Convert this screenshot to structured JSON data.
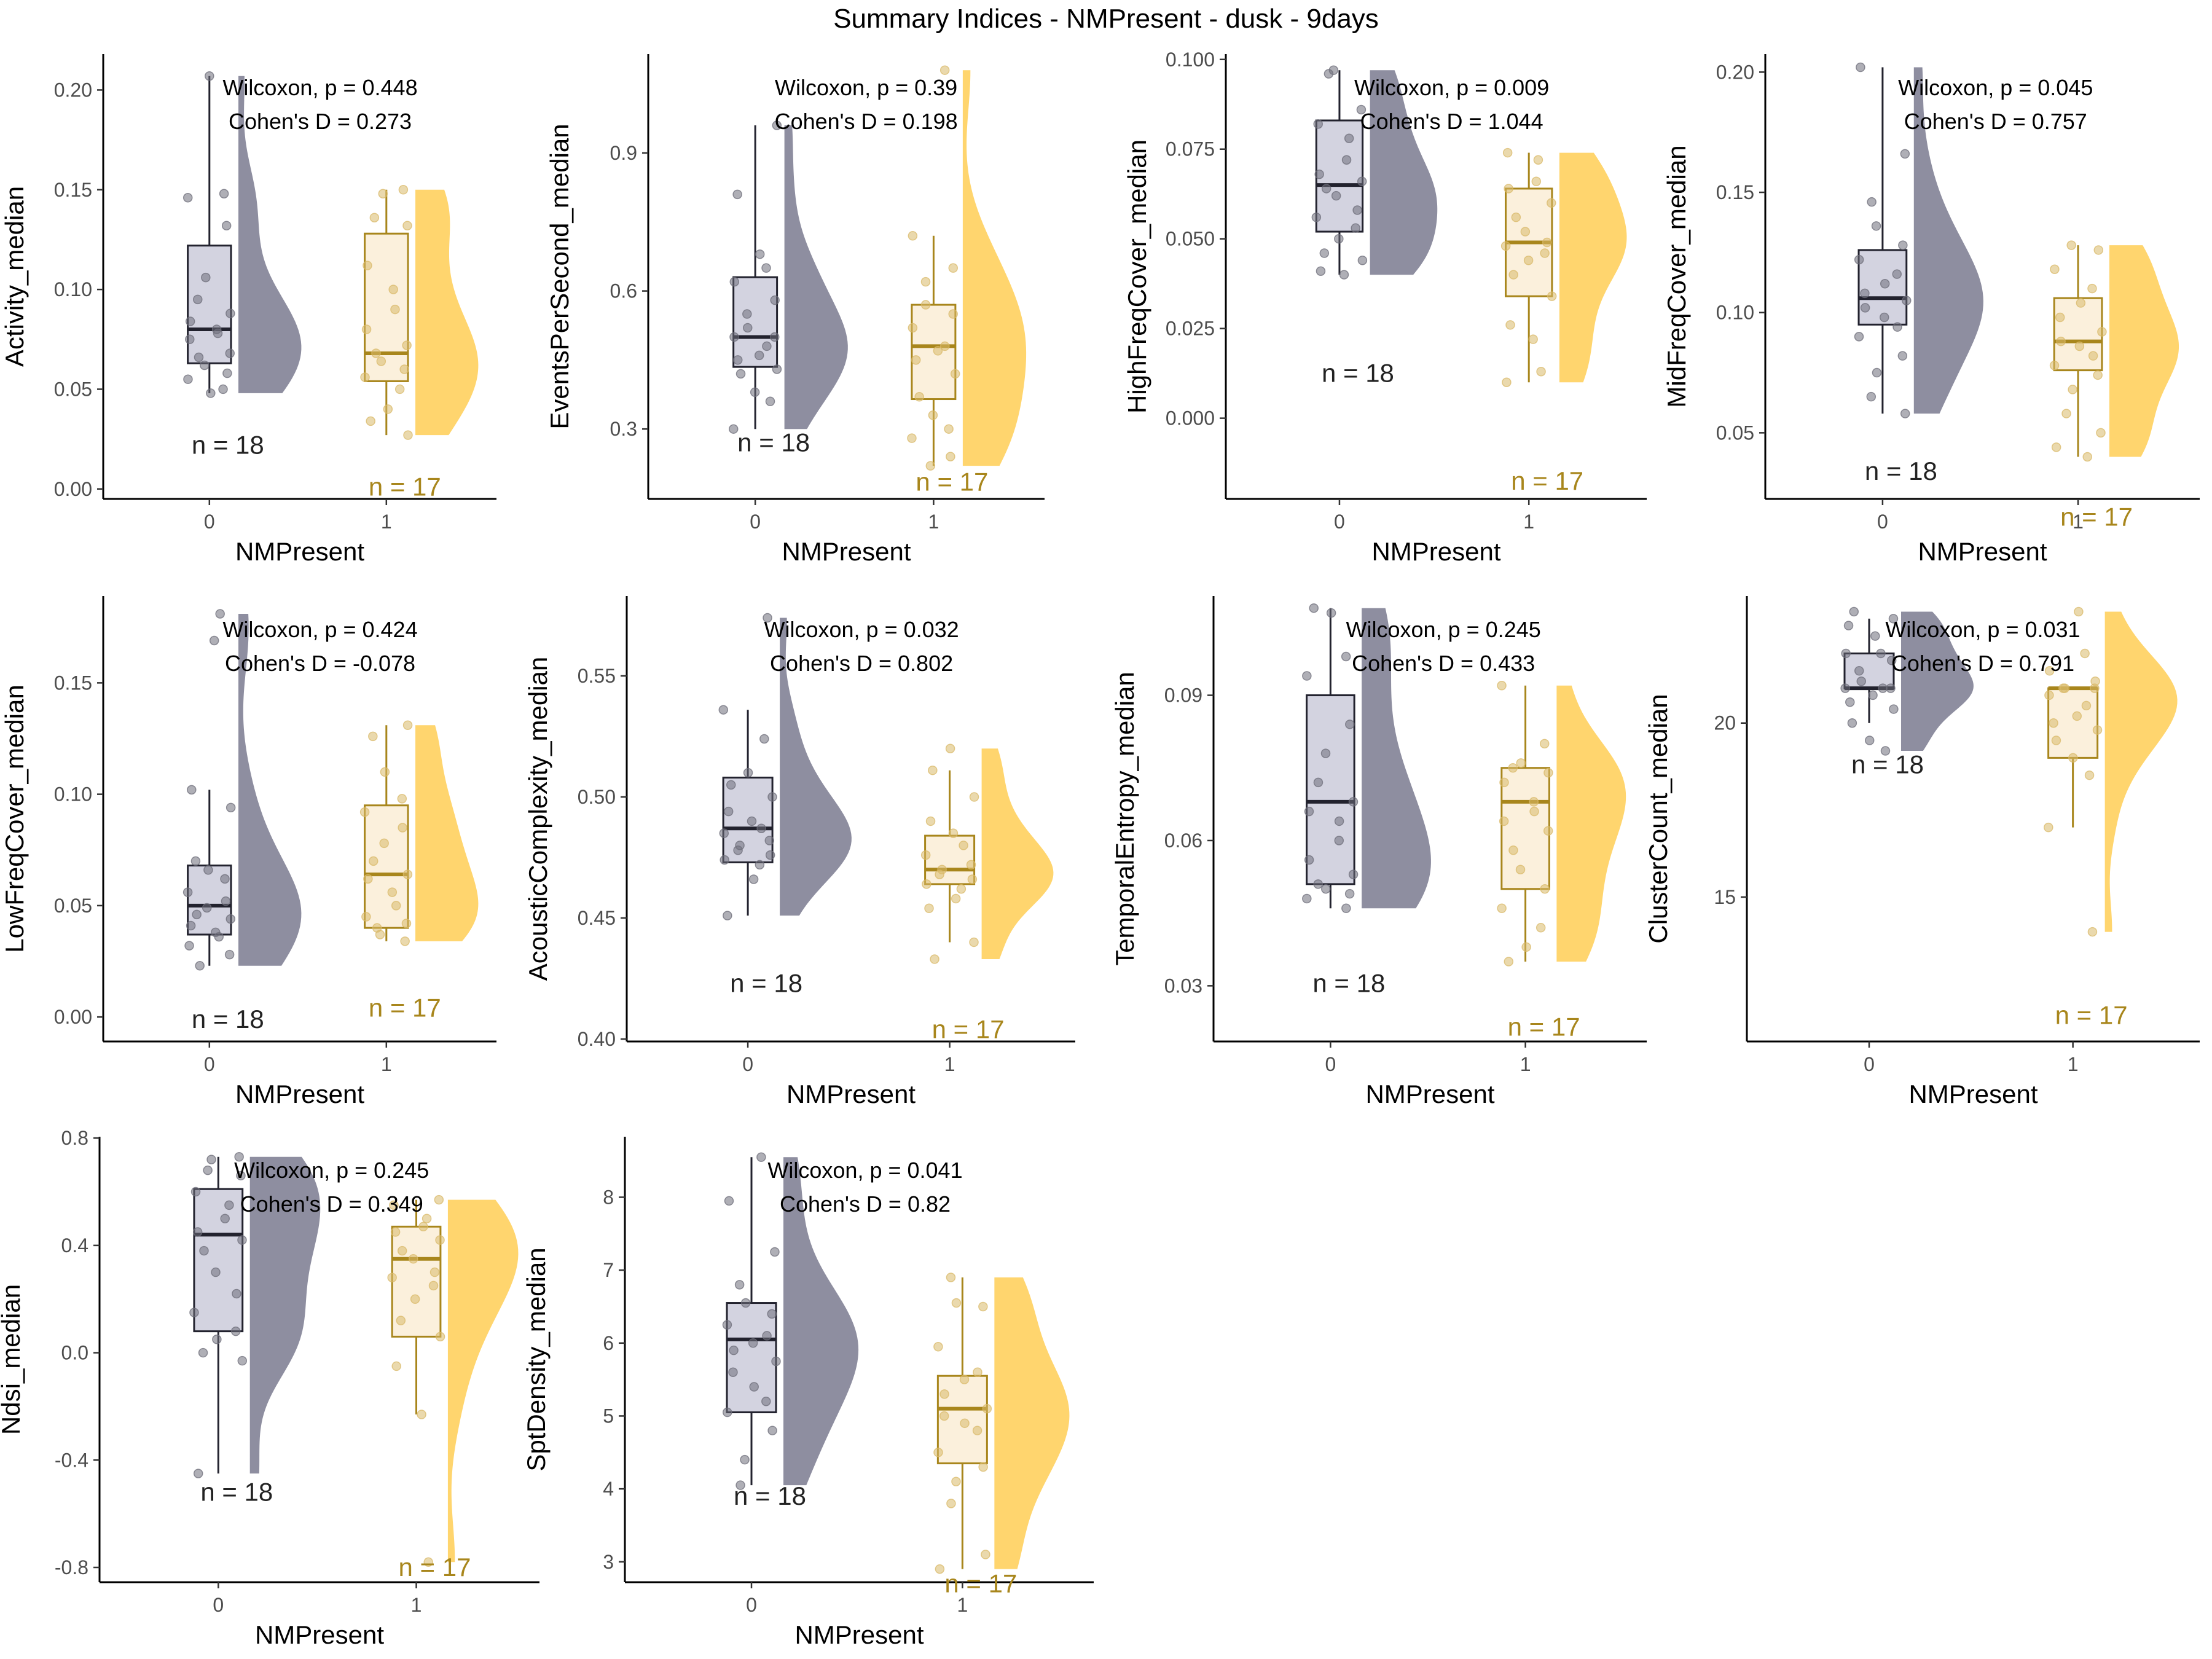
{
  "title": "Summary Indices - NMPresent - dusk - 9days",
  "colors": {
    "g0_box_fill": "#d3d3e0",
    "g0_line": "#22222e",
    "g0_point": "#6e6e7a",
    "g0_density": "#8e8ea0",
    "g1_box_fill": "#fbf0dc",
    "g1_line": "#a8861c",
    "g1_point": "#d9b96a",
    "g1_density": "#ffd56e",
    "n1_text": "#a8861c",
    "n0_text": "#222222"
  },
  "chart_data": [
    {
      "type": "raincloud",
      "ylabel": "Activity_median",
      "xlabel": "NMPresent",
      "categories": [
        "0",
        "1"
      ],
      "ylim": [
        -0.005,
        0.218
      ],
      "yticks": [
        0.0,
        0.05,
        0.1,
        0.15,
        0.2
      ],
      "stats": [
        "Wilcoxon, p = 0.448",
        "Cohen's D = 0.273"
      ],
      "groups": [
        {
          "name": "0",
          "n_label": "n = 18",
          "n_y": 0.022,
          "min": 0.048,
          "q1": 0.063,
          "median": 0.08,
          "q3": 0.122,
          "max": 0.207,
          "points": [
            0.207,
            0.148,
            0.146,
            0.132,
            0.106,
            0.095,
            0.088,
            0.084,
            0.08,
            0.078,
            0.075,
            0.068,
            0.066,
            0.062,
            0.058,
            0.055,
            0.05,
            0.048
          ]
        },
        {
          "name": "1",
          "n_label": "n = 17",
          "n_y": 0.001,
          "min": 0.027,
          "q1": 0.054,
          "median": 0.068,
          "q3": 0.128,
          "max": 0.15,
          "points": [
            0.15,
            0.148,
            0.136,
            0.132,
            0.112,
            0.1,
            0.09,
            0.08,
            0.072,
            0.068,
            0.064,
            0.06,
            0.056,
            0.05,
            0.04,
            0.034,
            0.027
          ]
        }
      ]
    },
    {
      "type": "raincloud",
      "ylabel": "EventsPerSecond_median",
      "xlabel": "NMPresent",
      "categories": [
        "0",
        "1"
      ],
      "ylim": [
        0.148,
        1.115
      ],
      "yticks": [
        0.3,
        0.6,
        0.9
      ],
      "stats": [
        "Wilcoxon, p = 0.39",
        "Cohen's D = 0.198"
      ],
      "groups": [
        {
          "name": "0",
          "n_label": "n = 18",
          "n_y": 0.27,
          "min": 0.3,
          "q1": 0.435,
          "median": 0.5,
          "q3": 0.63,
          "max": 0.96,
          "points": [
            0.96,
            0.81,
            0.68,
            0.65,
            0.62,
            0.58,
            0.55,
            0.52,
            0.5,
            0.5,
            0.48,
            0.46,
            0.45,
            0.43,
            0.42,
            0.38,
            0.36,
            0.3
          ]
        },
        {
          "name": "1",
          "n_label": "n = 17",
          "n_y": 0.185,
          "min": 0.22,
          "q1": 0.365,
          "median": 0.48,
          "q3": 0.57,
          "max": 0.72,
          "points": [
            1.08,
            0.72,
            0.65,
            0.62,
            0.57,
            0.55,
            0.52,
            0.48,
            0.47,
            0.45,
            0.42,
            0.37,
            0.33,
            0.3,
            0.28,
            0.24,
            0.22
          ]
        }
      ]
    },
    {
      "type": "raincloud",
      "ylabel": "HighFreqCover_median",
      "xlabel": "NMPresent",
      "categories": [
        "0",
        "1"
      ],
      "ylim": [
        -0.0225,
        0.1015
      ],
      "yticks": [
        0.0,
        0.025,
        0.05,
        0.075,
        0.1
      ],
      "stats": [
        "Wilcoxon, p = 0.009",
        "Cohen's D = 1.044"
      ],
      "groups": [
        {
          "name": "0",
          "n_label": "n = 18",
          "n_y": 0.0125,
          "min": 0.04,
          "q1": 0.052,
          "median": 0.065,
          "q3": 0.083,
          "max": 0.097,
          "points": [
            0.097,
            0.096,
            0.086,
            0.082,
            0.078,
            0.072,
            0.068,
            0.066,
            0.064,
            0.062,
            0.058,
            0.056,
            0.053,
            0.05,
            0.046,
            0.044,
            0.041,
            0.04
          ]
        },
        {
          "name": "1",
          "n_label": "n = 17",
          "n_y": -0.0175,
          "min": 0.01,
          "q1": 0.034,
          "median": 0.049,
          "q3": 0.064,
          "max": 0.074,
          "points": [
            0.074,
            0.072,
            0.066,
            0.064,
            0.06,
            0.056,
            0.052,
            0.049,
            0.048,
            0.046,
            0.044,
            0.04,
            0.034,
            0.026,
            0.022,
            0.013,
            0.01
          ]
        }
      ]
    },
    {
      "type": "raincloud",
      "ylabel": "MidFreqCover_median",
      "xlabel": "NMPresent",
      "categories": [
        "0",
        "1"
      ],
      "ylim": [
        0.0225,
        0.2075
      ],
      "yticks": [
        0.05,
        0.1,
        0.15,
        0.2
      ],
      "stats": [
        "Wilcoxon, p = 0.045",
        "Cohen's D = 0.757"
      ],
      "groups": [
        {
          "name": "0",
          "n_label": "n = 18",
          "n_y": 0.034,
          "min": 0.058,
          "q1": 0.095,
          "median": 0.106,
          "q3": 0.126,
          "max": 0.202,
          "points": [
            0.202,
            0.166,
            0.146,
            0.136,
            0.128,
            0.122,
            0.116,
            0.112,
            0.108,
            0.105,
            0.102,
            0.098,
            0.094,
            0.09,
            0.082,
            0.075,
            0.065,
            0.058
          ]
        },
        {
          "name": "1",
          "n_label": "n = 17",
          "n_y": 0.015,
          "min": 0.04,
          "q1": 0.076,
          "median": 0.088,
          "q3": 0.106,
          "max": 0.128,
          "points": [
            0.128,
            0.126,
            0.118,
            0.11,
            0.104,
            0.098,
            0.092,
            0.088,
            0.086,
            0.082,
            0.078,
            0.074,
            0.068,
            0.058,
            0.05,
            0.044,
            0.04
          ]
        }
      ]
    },
    {
      "type": "raincloud",
      "ylabel": "LowFreqCover_median",
      "xlabel": "NMPresent",
      "categories": [
        "0",
        "1"
      ],
      "ylim": [
        -0.011,
        0.189
      ],
      "yticks": [
        0.0,
        0.05,
        0.1,
        0.15
      ],
      "stats": [
        "Wilcoxon, p = 0.424",
        "Cohen's D = -0.078"
      ],
      "groups": [
        {
          "name": "0",
          "n_label": "n = 18",
          "n_y": -0.001,
          "min": 0.023,
          "q1": 0.037,
          "median": 0.05,
          "q3": 0.068,
          "max": 0.102,
          "points": [
            0.181,
            0.169,
            0.102,
            0.094,
            0.07,
            0.066,
            0.062,
            0.056,
            0.052,
            0.049,
            0.046,
            0.044,
            0.041,
            0.038,
            0.036,
            0.032,
            0.028,
            0.023
          ]
        },
        {
          "name": "1",
          "n_label": "n = 17",
          "n_y": 0.004,
          "min": 0.034,
          "q1": 0.04,
          "median": 0.064,
          "q3": 0.095,
          "max": 0.131,
          "points": [
            0.131,
            0.126,
            0.11,
            0.098,
            0.092,
            0.085,
            0.078,
            0.07,
            0.064,
            0.062,
            0.056,
            0.05,
            0.045,
            0.042,
            0.04,
            0.037,
            0.034
          ]
        }
      ]
    },
    {
      "type": "raincloud",
      "ylabel": "AcousticComplexity_median",
      "xlabel": "NMPresent",
      "categories": [
        "0",
        "1"
      ],
      "ylim": [
        0.399,
        0.583
      ],
      "yticks": [
        0.4,
        0.45,
        0.5,
        0.55
      ],
      "stats": [
        "Wilcoxon, p = 0.032",
        "Cohen's D = 0.802"
      ],
      "groups": [
        {
          "name": "0",
          "n_label": "n = 18",
          "n_y": 0.423,
          "min": 0.451,
          "q1": 0.473,
          "median": 0.487,
          "q3": 0.508,
          "max": 0.536,
          "points": [
            0.574,
            0.536,
            0.524,
            0.51,
            0.505,
            0.5,
            0.494,
            0.49,
            0.487,
            0.485,
            0.482,
            0.48,
            0.478,
            0.476,
            0.474,
            0.472,
            0.466,
            0.451
          ]
        },
        {
          "name": "1",
          "n_label": "n = 17",
          "n_y": 0.404,
          "min": 0.44,
          "q1": 0.464,
          "median": 0.47,
          "q3": 0.484,
          "max": 0.511,
          "points": [
            0.52,
            0.511,
            0.5,
            0.49,
            0.485,
            0.48,
            0.476,
            0.472,
            0.47,
            0.468,
            0.466,
            0.464,
            0.462,
            0.458,
            0.454,
            0.44,
            0.433
          ]
        }
      ]
    },
    {
      "type": "raincloud",
      "ylabel": "TemporalEntropy_median",
      "xlabel": "NMPresent",
      "categories": [
        "0",
        "1"
      ],
      "ylim": [
        0.0185,
        0.1105
      ],
      "yticks": [
        0.03,
        0.06,
        0.09
      ],
      "stats": [
        "Wilcoxon, p = 0.245",
        "Cohen's D = 0.433"
      ],
      "groups": [
        {
          "name": "0",
          "n_label": "n = 18",
          "n_y": 0.0305,
          "min": 0.046,
          "q1": 0.051,
          "median": 0.068,
          "q3": 0.09,
          "max": 0.108,
          "points": [
            0.108,
            0.107,
            0.098,
            0.094,
            0.084,
            0.078,
            0.072,
            0.068,
            0.066,
            0.064,
            0.06,
            0.056,
            0.053,
            0.051,
            0.05,
            0.049,
            0.048,
            0.046
          ]
        },
        {
          "name": "1",
          "n_label": "n = 17",
          "n_y": 0.0215,
          "min": 0.035,
          "q1": 0.05,
          "median": 0.068,
          "q3": 0.075,
          "max": 0.092,
          "points": [
            0.092,
            0.08,
            0.076,
            0.075,
            0.074,
            0.072,
            0.068,
            0.066,
            0.064,
            0.062,
            0.058,
            0.054,
            0.05,
            0.046,
            0.042,
            0.038,
            0.035
          ]
        }
      ]
    },
    {
      "type": "raincloud",
      "ylabel": "ClusterCount_median",
      "xlabel": "NMPresent",
      "categories": [
        "0",
        "1"
      ],
      "ylim": [
        10.85,
        23.65
      ],
      "yticks": [
        15,
        20
      ],
      "stats": [
        "Wilcoxon, p = 0.031",
        "Cohen's D = 0.791"
      ],
      "groups": [
        {
          "name": "0",
          "n_label": "n = 18",
          "n_y": 18.8,
          "min": 20.0,
          "q1": 21.0,
          "median": 21.0,
          "q3": 22.0,
          "max": 23.0,
          "points": [
            23.2,
            23.0,
            22.8,
            22.5,
            22.0,
            22.0,
            21.8,
            21.5,
            21.2,
            21.0,
            21.0,
            21.0,
            20.8,
            20.6,
            20.4,
            20.0,
            19.5,
            19.2
          ]
        },
        {
          "name": "1",
          "n_label": "n = 17",
          "n_y": 11.6,
          "min": 17.0,
          "q1": 19.0,
          "median": 21.0,
          "q3": 21.0,
          "max": 21.0,
          "points": [
            23.2,
            22.0,
            21.5,
            21.2,
            21.0,
            21.0,
            21.0,
            20.8,
            20.5,
            20.2,
            20.0,
            19.8,
            19.5,
            19.0,
            18.5,
            17.0,
            14.0
          ]
        }
      ]
    },
    {
      "type": "raincloud",
      "ylabel": "Ndsi_median",
      "xlabel": "NMPresent",
      "categories": [
        "0",
        "1"
      ],
      "ylim": [
        -0.855,
        0.805
      ],
      "yticks": [
        -0.8,
        -0.4,
        0.0,
        0.4,
        0.8
      ],
      "stats": [
        "Wilcoxon, p = 0.245",
        "Cohen's D = 0.349"
      ],
      "groups": [
        {
          "name": "0",
          "n_label": "n = 18",
          "n_y": -0.52,
          "min": -0.45,
          "q1": 0.08,
          "median": 0.44,
          "q3": 0.61,
          "max": 0.73,
          "points": [
            0.73,
            0.72,
            0.68,
            0.66,
            0.6,
            0.55,
            0.5,
            0.45,
            0.42,
            0.38,
            0.3,
            0.22,
            0.15,
            0.08,
            0.05,
            0.0,
            -0.03,
            -0.45
          ]
        },
        {
          "name": "1",
          "n_label": "n = 17",
          "n_y": -0.8,
          "min": -0.23,
          "q1": 0.06,
          "median": 0.35,
          "q3": 0.47,
          "max": 0.57,
          "points": [
            0.57,
            0.55,
            0.5,
            0.47,
            0.45,
            0.42,
            0.38,
            0.35,
            0.3,
            0.28,
            0.25,
            0.2,
            0.12,
            0.06,
            -0.05,
            -0.23,
            -0.78
          ]
        }
      ]
    },
    {
      "type": "raincloud",
      "ylabel": "SptDensity_median",
      "xlabel": "NMPresent",
      "categories": [
        "0",
        "1"
      ],
      "ylim": [
        2.72,
        8.83
      ],
      "yticks": [
        3,
        4,
        5,
        6,
        7,
        8
      ],
      "stats": [
        "Wilcoxon, p = 0.041",
        "Cohen's D = 0.82"
      ],
      "groups": [
        {
          "name": "0",
          "n_label": "n = 18",
          "n_y": 3.9,
          "min": 4.05,
          "q1": 5.05,
          "median": 6.05,
          "q3": 6.55,
          "max": 8.55,
          "points": [
            8.55,
            7.95,
            7.25,
            6.8,
            6.55,
            6.4,
            6.25,
            6.1,
            6.0,
            5.9,
            5.75,
            5.6,
            5.4,
            5.2,
            5.05,
            4.8,
            4.4,
            4.05
          ]
        },
        {
          "name": "1",
          "n_label": "n = 17",
          "n_y": 2.7,
          "min": 2.9,
          "q1": 4.35,
          "median": 5.1,
          "q3": 5.55,
          "max": 6.9,
          "points": [
            6.9,
            6.55,
            6.5,
            5.95,
            5.6,
            5.5,
            5.3,
            5.1,
            5.0,
            4.9,
            4.8,
            4.5,
            4.3,
            4.1,
            3.8,
            3.1,
            2.9
          ]
        }
      ]
    }
  ]
}
